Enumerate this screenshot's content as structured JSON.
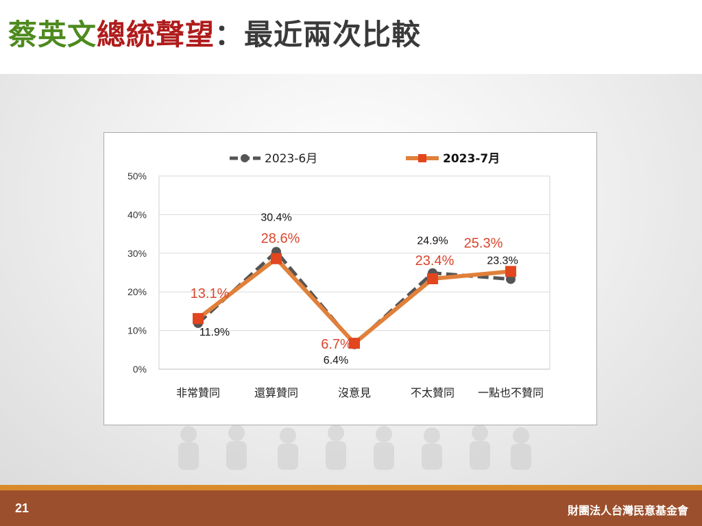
{
  "slide": {
    "title_part1": "蔡英文",
    "title_part2": "總統聲望",
    "title_part3": "：最近兩次比較",
    "page_number": "21",
    "organization": "財團法人台灣民意基金會",
    "colors": {
      "title_green": "#4e8a1f",
      "title_red": "#b01c1c",
      "series_june": "#555555",
      "series_july": "#e0803a",
      "series_july_label": "#d9442b",
      "footer_bar": "#9c4f2c",
      "footer_stripe": "#d98a2b"
    }
  },
  "chart_data": {
    "type": "line",
    "categories": [
      "非常贊同",
      "還算贊同",
      "沒意見",
      "不太贊同",
      "一點也不贊同"
    ],
    "series": [
      {
        "name": "2023-6月",
        "values": [
          11.9,
          30.4,
          6.4,
          24.9,
          23.3
        ],
        "labels": [
          "11.9%",
          "30.4%",
          "6.4%",
          "24.9%",
          "23.3%"
        ],
        "style": "dashed",
        "marker": "circle"
      },
      {
        "name": "2023-7月",
        "values": [
          13.1,
          28.6,
          6.7,
          23.4,
          25.3
        ],
        "labels": [
          "13.1%",
          "28.6%",
          "6.7%",
          "23.4%",
          "25.3%"
        ],
        "style": "solid",
        "marker": "square"
      }
    ],
    "yticks": [
      "0%",
      "10%",
      "20%",
      "30%",
      "40%",
      "50%"
    ],
    "ylim": [
      0,
      50
    ],
    "grid": true,
    "legend": "top-center"
  }
}
